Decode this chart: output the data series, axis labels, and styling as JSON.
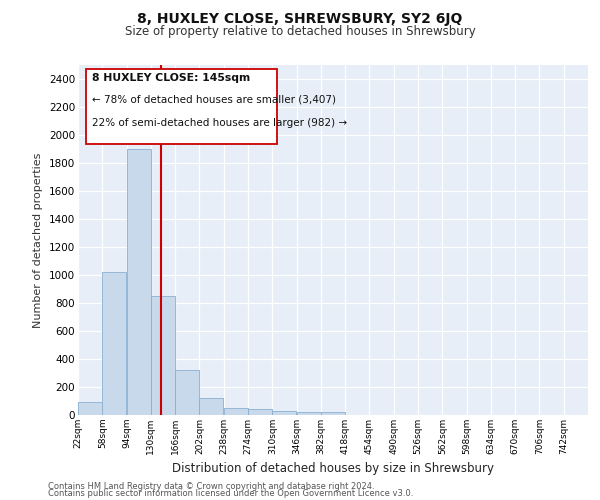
{
  "title1": "8, HUXLEY CLOSE, SHREWSBURY, SY2 6JQ",
  "title2": "Size of property relative to detached houses in Shrewsbury",
  "xlabel": "Distribution of detached houses by size in Shrewsbury",
  "ylabel": "Number of detached properties",
  "footer1": "Contains HM Land Registry data © Crown copyright and database right 2024.",
  "footer2": "Contains public sector information licensed under the Open Government Licence v3.0.",
  "annotation_line1": "8 HUXLEY CLOSE: 145sqm",
  "annotation_line2": "← 78% of detached houses are smaller (3,407)",
  "annotation_line3": "22% of semi-detached houses are larger (982) →",
  "property_size": 145,
  "bar_color": "#c9d9ec",
  "bar_edge_color": "#8aafd0",
  "marker_color": "#cc0000",
  "background_color": "#e8eef7",
  "fig_background": "#ffffff",
  "categories": [
    "22sqm",
    "58sqm",
    "94sqm",
    "130sqm",
    "166sqm",
    "202sqm",
    "238sqm",
    "274sqm",
    "310sqm",
    "346sqm",
    "382sqm",
    "418sqm",
    "454sqm",
    "490sqm",
    "526sqm",
    "562sqm",
    "598sqm",
    "634sqm",
    "670sqm",
    "706sqm",
    "742sqm"
  ],
  "values": [
    90,
    1020,
    1900,
    850,
    320,
    120,
    50,
    45,
    30,
    20,
    20,
    0,
    0,
    0,
    0,
    0,
    0,
    0,
    0,
    0,
    0
  ],
  "bin_width": 36,
  "bin_starts": [
    22,
    58,
    94,
    130,
    166,
    202,
    238,
    274,
    310,
    346,
    382,
    418,
    454,
    490,
    526,
    562,
    598,
    634,
    670,
    706,
    742
  ],
  "ylim": [
    0,
    2500
  ],
  "yticks": [
    0,
    200,
    400,
    600,
    800,
    1000,
    1200,
    1400,
    1600,
    1800,
    2000,
    2200,
    2400
  ]
}
